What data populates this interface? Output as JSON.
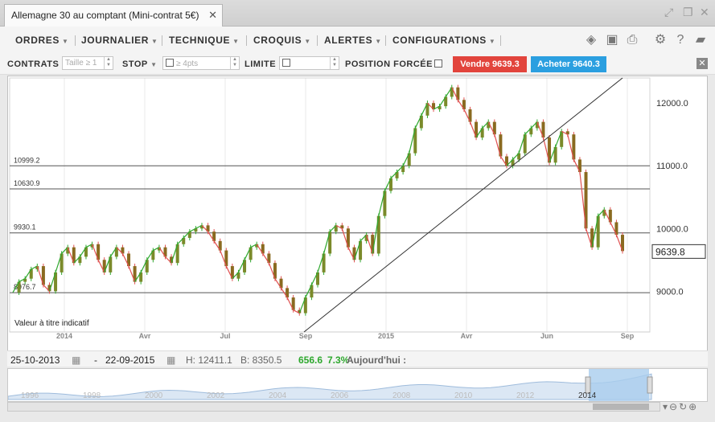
{
  "window": {
    "tab_title": "Allemagne 30 au comptant (Mini-contrat 5€)"
  },
  "menu": {
    "items": [
      {
        "label": "ORDRES"
      },
      {
        "label": "JOURNALIER"
      },
      {
        "label": "TECHNIQUE"
      },
      {
        "label": "CROQUIS"
      },
      {
        "label": "ALERTES"
      },
      {
        "label": "CONFIGURATIONS"
      }
    ]
  },
  "order_bar": {
    "contrats_label": "CONTRATS",
    "size_placeholder": "Taille ≥ 1",
    "stop_label": "STOP",
    "stop_placeholder": "≥ 4pts",
    "limite_label": "LIMITE",
    "position_label": "POSITION FORCÉE",
    "sell_label": "Vendre 9639.3",
    "buy_label": "Acheter 9640.3"
  },
  "chart_data": {
    "type": "line",
    "style": "candlestick",
    "x_tick_labels": [
      "2014",
      "Avr",
      "Jul",
      "Sep",
      "2015",
      "Avr",
      "Jun",
      "Sep"
    ],
    "y_ticks": [
      9000,
      10000,
      11000,
      12000
    ],
    "y_tick_labels": [
      "9000.0",
      "10000.0",
      "11000.0",
      "12000.0"
    ],
    "ylim": [
      8350,
      12400
    ],
    "horizontal_levels": [
      {
        "value": 10999.2,
        "label": "10999.2"
      },
      {
        "value": 10630.9,
        "label": "10630.9"
      },
      {
        "value": 9930.1,
        "label": "9930.1"
      },
      {
        "value": 8976.7,
        "label": "8976.7"
      }
    ],
    "current_price": 9639.8,
    "current_price_label": "9639.8",
    "annotation": "Valeur à titre indicatif",
    "series": [
      {
        "values": [
          8980,
          9150,
          9200,
          9350,
          9400,
          9100,
          9000,
          9300,
          9600,
          9700,
          9450,
          9550,
          9700,
          9750,
          9500,
          9300,
          9550,
          9700,
          9600,
          9400,
          9150,
          9300,
          9500,
          9650,
          9700,
          9550,
          9450,
          9750,
          9850,
          9950,
          10000,
          10050,
          9950,
          9800,
          9650,
          9400,
          9200,
          9300,
          9500,
          9700,
          9750,
          9600,
          9450,
          9200,
          9050,
          8900,
          8700,
          8650,
          8900,
          9100,
          9300,
          9600,
          9950,
          10050,
          10000,
          9700,
          9500,
          9800,
          9900,
          9600,
          10200,
          10600,
          10800,
          10900,
          11000,
          11200,
          11600,
          11800,
          12000,
          11900,
          11950,
          12100,
          12250,
          12050,
          11900,
          11700,
          11450,
          11600,
          11700,
          11500,
          11150,
          11000,
          11100,
          11200,
          11500,
          11600,
          11700,
          11450,
          11050,
          11300,
          11550,
          11500,
          11100,
          10900,
          10000,
          9700,
          10200,
          10300,
          10100,
          9900,
          9640
        ]
      }
    ]
  },
  "footer": {
    "start_date": "25-10-2013",
    "dash": "-",
    "end_date": "22-09-2015",
    "high": "H: 12411.1",
    "low": "B: 8350.5",
    "change": "656.6",
    "change_pct": "7.3%",
    "today_label": "Aujourd'hui :"
  },
  "navigator": {
    "years": [
      "1996",
      "1998",
      "2000",
      "2002",
      "2004",
      "2006",
      "2008",
      "2010",
      "2012",
      "2014"
    ]
  },
  "colors": {
    "up": "#2ea82e",
    "down": "#e05050",
    "sell": "#e2443c",
    "buy": "#2b9fe0",
    "grid": "#e8e8e8"
  }
}
